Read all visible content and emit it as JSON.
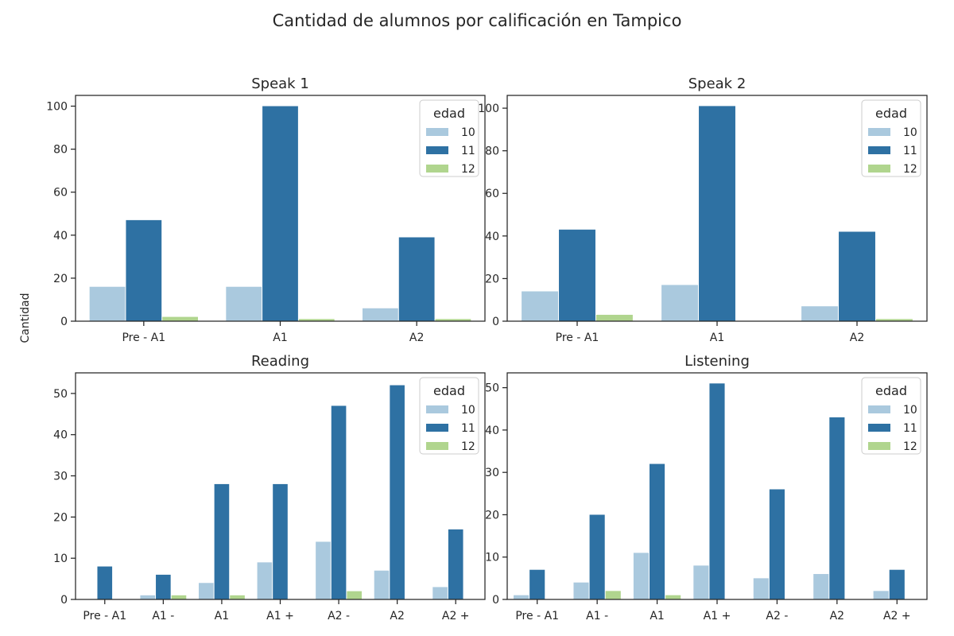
{
  "figure": {
    "suptitle": "Cantidad de alumnos por calificación en Tampico",
    "shared_ylabel": "Cantidad"
  },
  "colors": {
    "10": "#aac9de",
    "11": "#2e71a3",
    "12": "#b0d58e"
  },
  "chart_data": [
    {
      "type": "bar",
      "title": "Speak 1",
      "categories": [
        "Pre - A1",
        "A1",
        "A2"
      ],
      "series": [
        {
          "name": "10",
          "values": [
            16,
            16,
            6
          ]
        },
        {
          "name": "11",
          "values": [
            47,
            100,
            39
          ]
        },
        {
          "name": "12",
          "values": [
            2,
            1,
            1
          ]
        }
      ],
      "ylim": [
        0,
        105
      ],
      "yticks": [
        0,
        20,
        40,
        60,
        80,
        100
      ],
      "legend": {
        "title": "edad",
        "position": "top-right"
      }
    },
    {
      "type": "bar",
      "title": "Speak 2",
      "categories": [
        "Pre - A1",
        "A1",
        "A2"
      ],
      "series": [
        {
          "name": "10",
          "values": [
            14,
            17,
            7
          ]
        },
        {
          "name": "11",
          "values": [
            43,
            101,
            42
          ]
        },
        {
          "name": "12",
          "values": [
            3,
            0,
            1
          ]
        }
      ],
      "ylim": [
        0,
        106
      ],
      "yticks": [
        0,
        20,
        40,
        60,
        80,
        100
      ],
      "legend": {
        "title": "edad",
        "position": "top-right"
      }
    },
    {
      "type": "bar",
      "title": "Reading",
      "categories": [
        "Pre - A1",
        "A1 -",
        "A1",
        "A1 +",
        "A2 -",
        "A2",
        "A2 +"
      ],
      "series": [
        {
          "name": "10",
          "values": [
            0,
            1,
            4,
            9,
            14,
            7,
            3
          ]
        },
        {
          "name": "11",
          "values": [
            8,
            6,
            28,
            28,
            47,
            52,
            17
          ]
        },
        {
          "name": "12",
          "values": [
            0,
            1,
            1,
            0,
            2,
            0,
            0
          ]
        }
      ],
      "ylim": [
        0,
        55
      ],
      "yticks": [
        0,
        10,
        20,
        30,
        40,
        50
      ],
      "legend": {
        "title": "edad",
        "position": "top-right"
      }
    },
    {
      "type": "bar",
      "title": "Listening",
      "categories": [
        "Pre - A1",
        "A1 -",
        "A1",
        "A1 +",
        "A2 -",
        "A2",
        "A2 +"
      ],
      "series": [
        {
          "name": "10",
          "values": [
            1,
            4,
            11,
            8,
            5,
            6,
            2
          ]
        },
        {
          "name": "11",
          "values": [
            7,
            20,
            32,
            51,
            26,
            43,
            7
          ]
        },
        {
          "name": "12",
          "values": [
            0,
            2,
            1,
            0,
            0,
            0,
            0
          ]
        }
      ],
      "ylim": [
        0,
        53.5
      ],
      "yticks": [
        0,
        10,
        20,
        30,
        40,
        50
      ],
      "legend": {
        "title": "edad",
        "position": "top-right"
      }
    }
  ]
}
